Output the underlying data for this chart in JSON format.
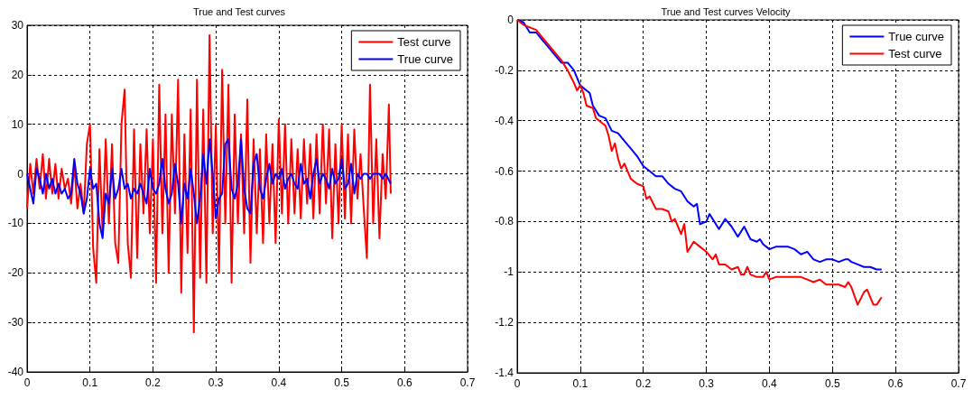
{
  "chart_data": [
    {
      "type": "line",
      "title": "True and Test curves",
      "xlim": [
        0,
        0.7
      ],
      "xticks": [
        0,
        0.1,
        0.2,
        0.3,
        0.4,
        0.5,
        0.6,
        0.7
      ],
      "ylim": [
        -40,
        30
      ],
      "yticks": [
        -40,
        -30,
        -20,
        -10,
        0,
        10,
        20,
        30
      ],
      "grid": true,
      "legend": "top right",
      "series": [
        {
          "name": "Test curve",
          "color": "#ff0000",
          "x": [
            0,
            0.005,
            0.01,
            0.015,
            0.02,
            0.025,
            0.03,
            0.035,
            0.04,
            0.045,
            0.05,
            0.055,
            0.06,
            0.065,
            0.07,
            0.075,
            0.08,
            0.085,
            0.09,
            0.095,
            0.1,
            0.105,
            0.11,
            0.115,
            0.12,
            0.125,
            0.13,
            0.135,
            0.14,
            0.145,
            0.15,
            0.155,
            0.16,
            0.165,
            0.17,
            0.175,
            0.18,
            0.185,
            0.19,
            0.195,
            0.2,
            0.205,
            0.21,
            0.215,
            0.22,
            0.225,
            0.23,
            0.235,
            0.24,
            0.245,
            0.25,
            0.255,
            0.26,
            0.265,
            0.27,
            0.275,
            0.28,
            0.285,
            0.29,
            0.295,
            0.3,
            0.305,
            0.31,
            0.315,
            0.32,
            0.325,
            0.33,
            0.335,
            0.34,
            0.345,
            0.35,
            0.355,
            0.36,
            0.365,
            0.37,
            0.375,
            0.38,
            0.385,
            0.39,
            0.395,
            0.4,
            0.405,
            0.41,
            0.415,
            0.42,
            0.425,
            0.43,
            0.435,
            0.44,
            0.445,
            0.45,
            0.455,
            0.46,
            0.465,
            0.47,
            0.475,
            0.48,
            0.485,
            0.49,
            0.495,
            0.5,
            0.505,
            0.51,
            0.515,
            0.52,
            0.525,
            0.53,
            0.535,
            0.54,
            0.545,
            0.55,
            0.555,
            0.56,
            0.565,
            0.57,
            0.575,
            0.578
          ],
          "values": [
            -7,
            2,
            -4,
            3,
            -3,
            4,
            -5,
            3,
            -4,
            2,
            -5,
            1,
            -3,
            -1,
            -6,
            2,
            -7,
            -2,
            -8,
            6,
            10,
            -15,
            -22,
            5,
            -12,
            7,
            -10,
            6,
            -14,
            -18,
            10,
            17,
            -14,
            -21,
            9,
            -17,
            6,
            -8,
            9,
            -12,
            7,
            -22,
            18,
            -12,
            12,
            -20,
            12,
            -8,
            19,
            -24,
            8,
            -16,
            13,
            -32,
            19,
            -21,
            13,
            -22,
            28,
            -12,
            10,
            -20,
            21,
            -10,
            18,
            -22,
            12,
            -10,
            8,
            -12,
            15,
            -18,
            7,
            -12,
            5,
            -14,
            8,
            -10,
            6,
            -14,
            11,
            -8,
            10,
            -10,
            7,
            -8,
            5,
            -9,
            7,
            -6,
            6,
            -9,
            8,
            -8,
            10,
            -6,
            9,
            -13,
            6,
            -10,
            10,
            -9,
            8,
            -10,
            9,
            -5,
            4,
            -7,
            -17,
            18,
            -10,
            7,
            -13,
            4,
            -5,
            14,
            -4
          ]
        },
        {
          "name": "True curve",
          "color": "#0000ff",
          "x": [
            0,
            0.005,
            0.01,
            0.015,
            0.02,
            0.025,
            0.03,
            0.035,
            0.04,
            0.045,
            0.05,
            0.055,
            0.06,
            0.065,
            0.07,
            0.075,
            0.08,
            0.085,
            0.09,
            0.095,
            0.1,
            0.105,
            0.11,
            0.115,
            0.12,
            0.125,
            0.13,
            0.135,
            0.14,
            0.145,
            0.15,
            0.155,
            0.16,
            0.165,
            0.17,
            0.175,
            0.18,
            0.185,
            0.19,
            0.195,
            0.2,
            0.205,
            0.21,
            0.215,
            0.22,
            0.225,
            0.23,
            0.235,
            0.24,
            0.245,
            0.25,
            0.255,
            0.26,
            0.265,
            0.27,
            0.275,
            0.28,
            0.285,
            0.29,
            0.295,
            0.3,
            0.305,
            0.31,
            0.315,
            0.32,
            0.325,
            0.33,
            0.335,
            0.34,
            0.345,
            0.35,
            0.355,
            0.36,
            0.365,
            0.37,
            0.375,
            0.38,
            0.385,
            0.39,
            0.395,
            0.4,
            0.405,
            0.41,
            0.415,
            0.42,
            0.425,
            0.43,
            0.435,
            0.44,
            0.445,
            0.45,
            0.455,
            0.46,
            0.465,
            0.47,
            0.475,
            0.48,
            0.485,
            0.49,
            0.495,
            0.5,
            0.505,
            0.51,
            0.515,
            0.52,
            0.525,
            0.53,
            0.535,
            0.54,
            0.545,
            0.55,
            0.555,
            0.56,
            0.565,
            0.57,
            0.578
          ],
          "values": [
            0,
            -3,
            -6,
            1,
            -1,
            -4,
            0,
            -3,
            -1,
            -4,
            -2,
            -4,
            -3,
            -5,
            -4,
            3,
            -2,
            -4,
            -8,
            -5,
            1,
            -3,
            -2,
            -10,
            -13,
            -4,
            -6,
            1,
            -5,
            -3,
            1,
            -3,
            -2,
            -5,
            -3,
            -4,
            -2,
            -4,
            -6,
            1,
            -3,
            -4,
            -2,
            3,
            -3,
            -6,
            -4,
            2,
            -2,
            -10,
            -2,
            -5,
            1,
            -4,
            -10,
            -5,
            4,
            -2,
            7,
            0,
            -9,
            -5,
            -4,
            6,
            7,
            -3,
            -5,
            -2,
            7,
            -3,
            -7,
            -8,
            2,
            4,
            -3,
            -5,
            -1,
            2,
            -2,
            0,
            -1,
            1,
            -3,
            -1,
            0,
            -2,
            -3,
            2,
            -2,
            -1,
            -5,
            0,
            3,
            -2,
            0,
            -1,
            -3,
            1,
            -2,
            -1,
            3,
            -3,
            -2,
            2,
            -4,
            0,
            -1,
            0,
            0,
            -1,
            0,
            0,
            0,
            -1,
            0,
            -2
          ]
        }
      ]
    },
    {
      "type": "line",
      "title": "True and Test curves Velocity",
      "xlim": [
        0,
        0.7
      ],
      "xticks": [
        0,
        0.1,
        0.2,
        0.3,
        0.4,
        0.5,
        0.6,
        0.7
      ],
      "ylim": [
        -1.4,
        0
      ],
      "yticks": [
        -1.4,
        -1.2,
        -1,
        -0.8,
        -0.6,
        -0.4,
        -0.2,
        0
      ],
      "grid": true,
      "legend": "top right",
      "series": [
        {
          "name": "True curve",
          "color": "#0000ff",
          "x": [
            0,
            0.01,
            0.02,
            0.03,
            0.04,
            0.05,
            0.06,
            0.07,
            0.08,
            0.09,
            0.1,
            0.11,
            0.115,
            0.12,
            0.13,
            0.14,
            0.15,
            0.16,
            0.17,
            0.18,
            0.19,
            0.2,
            0.21,
            0.22,
            0.23,
            0.24,
            0.25,
            0.26,
            0.27,
            0.28,
            0.285,
            0.29,
            0.3,
            0.305,
            0.31,
            0.32,
            0.33,
            0.34,
            0.35,
            0.36,
            0.37,
            0.38,
            0.385,
            0.39,
            0.4,
            0.41,
            0.42,
            0.43,
            0.44,
            0.45,
            0.46,
            0.47,
            0.48,
            0.49,
            0.5,
            0.51,
            0.52,
            0.525,
            0.53,
            0.54,
            0.55,
            0.56,
            0.57,
            0.578
          ],
          "values": [
            0,
            -0.01,
            -0.05,
            -0.05,
            -0.08,
            -0.11,
            -0.14,
            -0.17,
            -0.17,
            -0.2,
            -0.26,
            -0.28,
            -0.29,
            -0.34,
            -0.38,
            -0.39,
            -0.44,
            -0.45,
            -0.48,
            -0.51,
            -0.54,
            -0.58,
            -0.6,
            -0.62,
            -0.62,
            -0.65,
            -0.67,
            -0.68,
            -0.72,
            -0.74,
            -0.73,
            -0.81,
            -0.8,
            -0.77,
            -0.79,
            -0.83,
            -0.79,
            -0.82,
            -0.86,
            -0.82,
            -0.87,
            -0.88,
            -0.87,
            -0.89,
            -0.91,
            -0.9,
            -0.9,
            -0.9,
            -0.91,
            -0.93,
            -0.92,
            -0.95,
            -0.96,
            -0.95,
            -0.95,
            -0.96,
            -0.95,
            -0.95,
            -0.96,
            -0.97,
            -0.98,
            -0.98,
            -0.99,
            -0.99
          ]
        },
        {
          "name": "Test curve",
          "color": "#ff0000",
          "x": [
            0,
            0.01,
            0.02,
            0.03,
            0.04,
            0.05,
            0.06,
            0.07,
            0.08,
            0.09,
            0.095,
            0.1,
            0.105,
            0.11,
            0.12,
            0.125,
            0.13,
            0.14,
            0.145,
            0.15,
            0.155,
            0.16,
            0.165,
            0.17,
            0.18,
            0.19,
            0.2,
            0.205,
            0.21,
            0.22,
            0.23,
            0.24,
            0.245,
            0.25,
            0.26,
            0.265,
            0.27,
            0.28,
            0.29,
            0.3,
            0.31,
            0.315,
            0.32,
            0.33,
            0.34,
            0.35,
            0.355,
            0.36,
            0.365,
            0.37,
            0.38,
            0.39,
            0.395,
            0.4,
            0.41,
            0.42,
            0.43,
            0.44,
            0.45,
            0.46,
            0.47,
            0.48,
            0.49,
            0.5,
            0.51,
            0.52,
            0.525,
            0.53,
            0.54,
            0.55,
            0.555,
            0.565,
            0.57,
            0.578
          ],
          "values": [
            0,
            -0.02,
            -0.03,
            -0.04,
            -0.07,
            -0.1,
            -0.13,
            -0.16,
            -0.2,
            -0.25,
            -0.28,
            -0.26,
            -0.29,
            -0.34,
            -0.35,
            -0.39,
            -0.4,
            -0.42,
            -0.46,
            -0.52,
            -0.49,
            -0.55,
            -0.59,
            -0.57,
            -0.63,
            -0.65,
            -0.66,
            -0.71,
            -0.7,
            -0.75,
            -0.75,
            -0.76,
            -0.8,
            -0.79,
            -0.85,
            -0.81,
            -0.92,
            -0.88,
            -0.9,
            -0.92,
            -0.95,
            -0.93,
            -0.97,
            -0.97,
            -0.99,
            -0.98,
            -1.01,
            -1.01,
            -0.98,
            -1.01,
            -1.02,
            -1.02,
            -1,
            -1.03,
            -1.02,
            -1.02,
            -1.02,
            -1.02,
            -1.02,
            -1.03,
            -1.04,
            -1.03,
            -1.05,
            -1.05,
            -1.05,
            -1.06,
            -1.04,
            -1.06,
            -1.13,
            -1.08,
            -1.07,
            -1.13,
            -1.13,
            -1.1
          ]
        }
      ]
    }
  ]
}
